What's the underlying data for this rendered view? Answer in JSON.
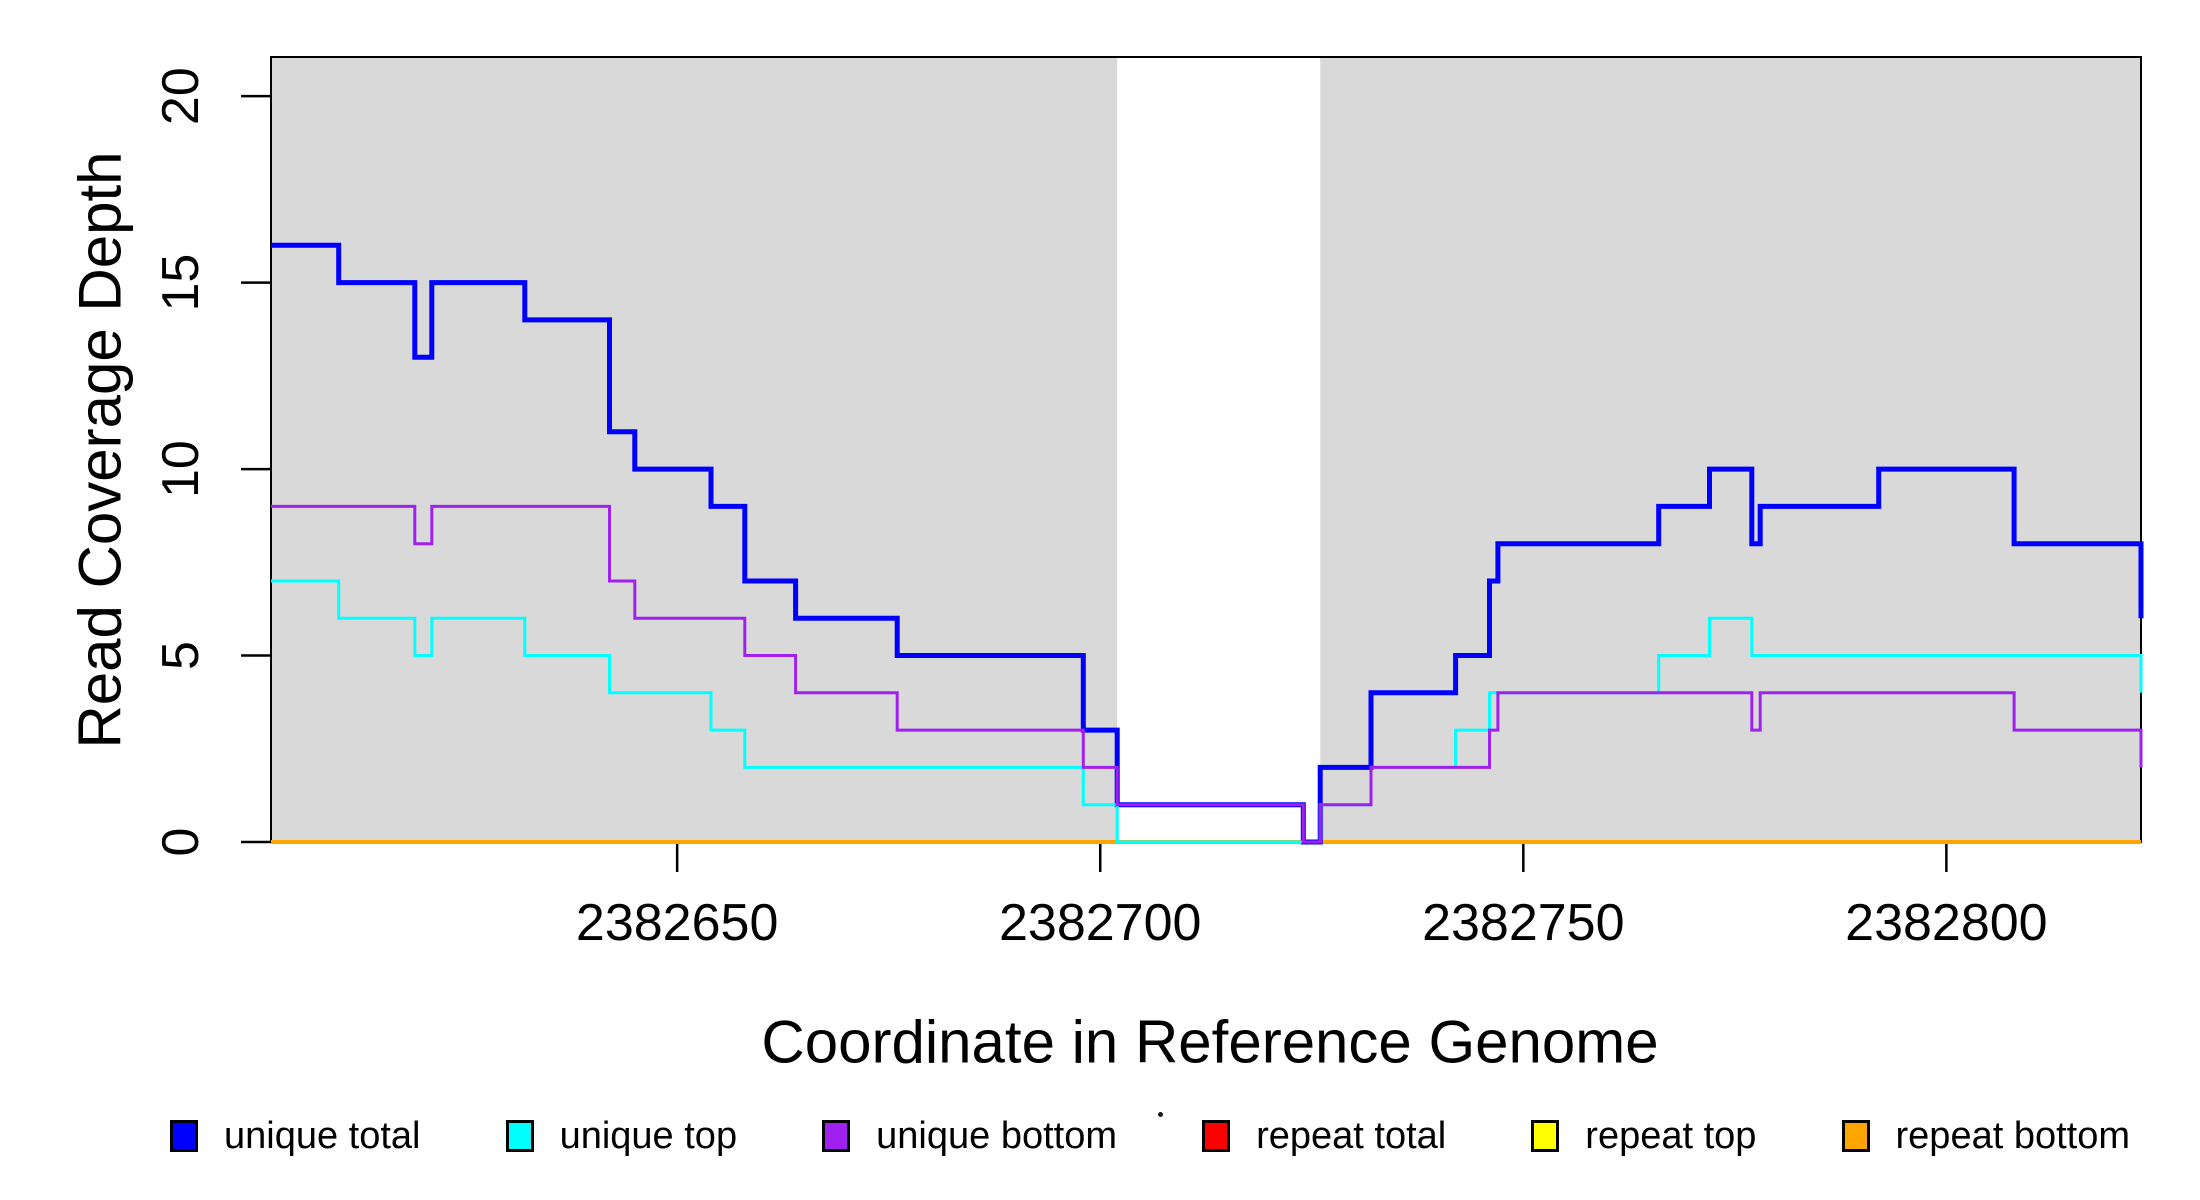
{
  "chart_data": {
    "type": "line",
    "subtype": "step-coverage",
    "title": "",
    "xlabel": "Coordinate in Reference Genome",
    "ylabel": "Read Coverage Depth",
    "xlim": [
      2382602,
      2382823
    ],
    "ylim": [
      0,
      21.05
    ],
    "x_ticks": [
      2382650,
      2382700,
      2382750,
      2382800
    ],
    "y_ticks": [
      0,
      5,
      10,
      15,
      20
    ],
    "grid": false,
    "legend_position": "bottom",
    "background_color": "#ffffff",
    "shade_color": "#d9d9d9",
    "box_color": "#000000",
    "shaded_regions": [
      [
        2382602,
        2382702
      ],
      [
        2382726,
        2382823
      ]
    ],
    "series": [
      {
        "name": "unique total",
        "color": "#0000ff",
        "line_width": 5,
        "steps": [
          [
            2382602,
            16
          ],
          [
            2382610,
            15
          ],
          [
            2382619,
            13
          ],
          [
            2382621,
            15
          ],
          [
            2382632,
            14
          ],
          [
            2382642,
            11
          ],
          [
            2382645,
            10
          ],
          [
            2382654,
            9
          ],
          [
            2382658,
            7
          ],
          [
            2382664,
            6
          ],
          [
            2382676,
            5
          ],
          [
            2382698,
            3
          ],
          [
            2382702,
            1
          ],
          [
            2382724,
            0
          ],
          [
            2382726,
            2
          ],
          [
            2382732,
            4
          ],
          [
            2382742,
            5
          ],
          [
            2382746,
            7
          ],
          [
            2382747,
            8
          ],
          [
            2382766,
            9
          ],
          [
            2382772,
            10
          ],
          [
            2382777,
            8
          ],
          [
            2382778,
            9
          ],
          [
            2382792,
            10
          ],
          [
            2382808,
            8
          ],
          [
            2382823,
            6
          ]
        ]
      },
      {
        "name": "unique top",
        "color": "#00ffff",
        "line_width": 3,
        "steps": [
          [
            2382602,
            7
          ],
          [
            2382610,
            6
          ],
          [
            2382619,
            5
          ],
          [
            2382621,
            6
          ],
          [
            2382632,
            5
          ],
          [
            2382642,
            4
          ],
          [
            2382654,
            3
          ],
          [
            2382658,
            2
          ],
          [
            2382698,
            1
          ],
          [
            2382702,
            0
          ],
          [
            2382726,
            1
          ],
          [
            2382732,
            2
          ],
          [
            2382742,
            3
          ],
          [
            2382746,
            4
          ],
          [
            2382766,
            5
          ],
          [
            2382772,
            6
          ],
          [
            2382777,
            5
          ],
          [
            2382823,
            4
          ]
        ]
      },
      {
        "name": "unique bottom",
        "color": "#a020f0",
        "line_width": 3,
        "steps": [
          [
            2382602,
            9
          ],
          [
            2382619,
            8
          ],
          [
            2382621,
            9
          ],
          [
            2382642,
            7
          ],
          [
            2382645,
            6
          ],
          [
            2382658,
            5
          ],
          [
            2382664,
            4
          ],
          [
            2382676,
            3
          ],
          [
            2382698,
            2
          ],
          [
            2382702,
            1
          ],
          [
            2382724,
            0
          ],
          [
            2382726,
            1
          ],
          [
            2382732,
            2
          ],
          [
            2382746,
            3
          ],
          [
            2382747,
            4
          ],
          [
            2382777,
            3
          ],
          [
            2382778,
            4
          ],
          [
            2382808,
            3
          ],
          [
            2382823,
            2
          ]
        ]
      },
      {
        "name": "repeat total",
        "color": "#ff0000",
        "line_width": 3,
        "steps": [
          [
            2382602,
            0
          ],
          [
            2382823,
            0
          ]
        ]
      },
      {
        "name": "repeat top",
        "color": "#ffff00",
        "line_width": 3,
        "steps": [
          [
            2382602,
            0
          ],
          [
            2382823,
            0
          ]
        ]
      },
      {
        "name": "repeat bottom",
        "color": "#ffa500",
        "line_width": 4,
        "steps": [
          [
            2382602,
            0
          ],
          [
            2382823,
            0
          ]
        ]
      }
    ],
    "draw_order": [
      "repeat total",
      "repeat top",
      "repeat bottom",
      "unique total",
      "unique top",
      "unique bottom"
    ],
    "legend": [
      {
        "label": "unique total",
        "color": "#0000ff"
      },
      {
        "label": "unique top",
        "color": "#00ffff"
      },
      {
        "label": "unique bottom",
        "color": "#a020f0"
      },
      {
        "label": "repeat total",
        "color": "#ff0000"
      },
      {
        "label": "repeat top",
        "color": "#ffff00"
      },
      {
        "label": "repeat bottom",
        "color": "#ffa500"
      }
    ]
  }
}
